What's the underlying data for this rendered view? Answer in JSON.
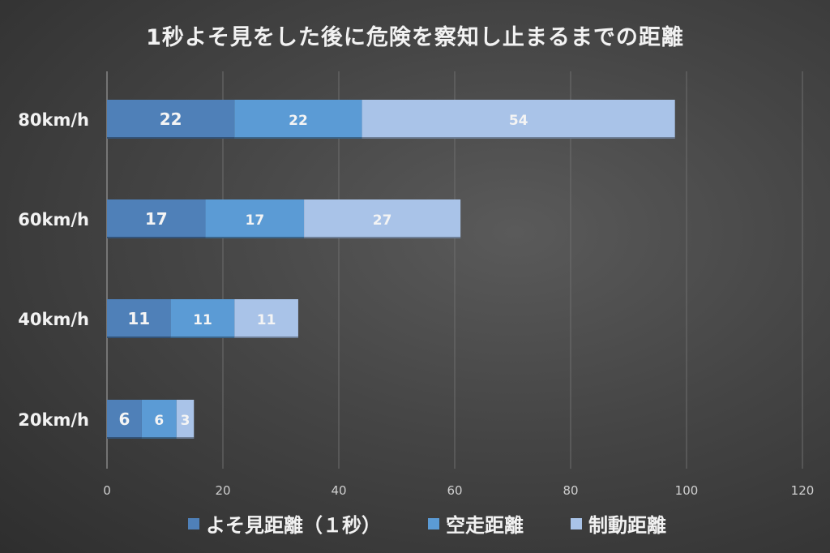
{
  "chart_data": {
    "type": "bar",
    "orientation": "horizontal",
    "stacked": true,
    "title": "1秒よそ見をした後に危険を察知し止まるまでの距離",
    "categories": [
      "80km/h",
      "60km/h",
      "40km/h",
      "20km/h"
    ],
    "series": [
      {
        "name": "よそ見距離（１秒）",
        "values": [
          22,
          17,
          11,
          6
        ],
        "color": "#4f80b8"
      },
      {
        "name": "空走距離",
        "values": [
          22,
          17,
          11,
          6
        ],
        "color": "#5b9bd5"
      },
      {
        "name": "制動距離",
        "values": [
          54,
          27,
          11,
          3
        ],
        "color": "#a9c3e8"
      }
    ],
    "xlim": [
      0,
      120
    ],
    "xticks": [
      0,
      20,
      40,
      60,
      80,
      100,
      120
    ],
    "grid": true,
    "legend_position": "bottom",
    "background_color": "#3c3c3c",
    "text_color": "#f2f2f2"
  }
}
